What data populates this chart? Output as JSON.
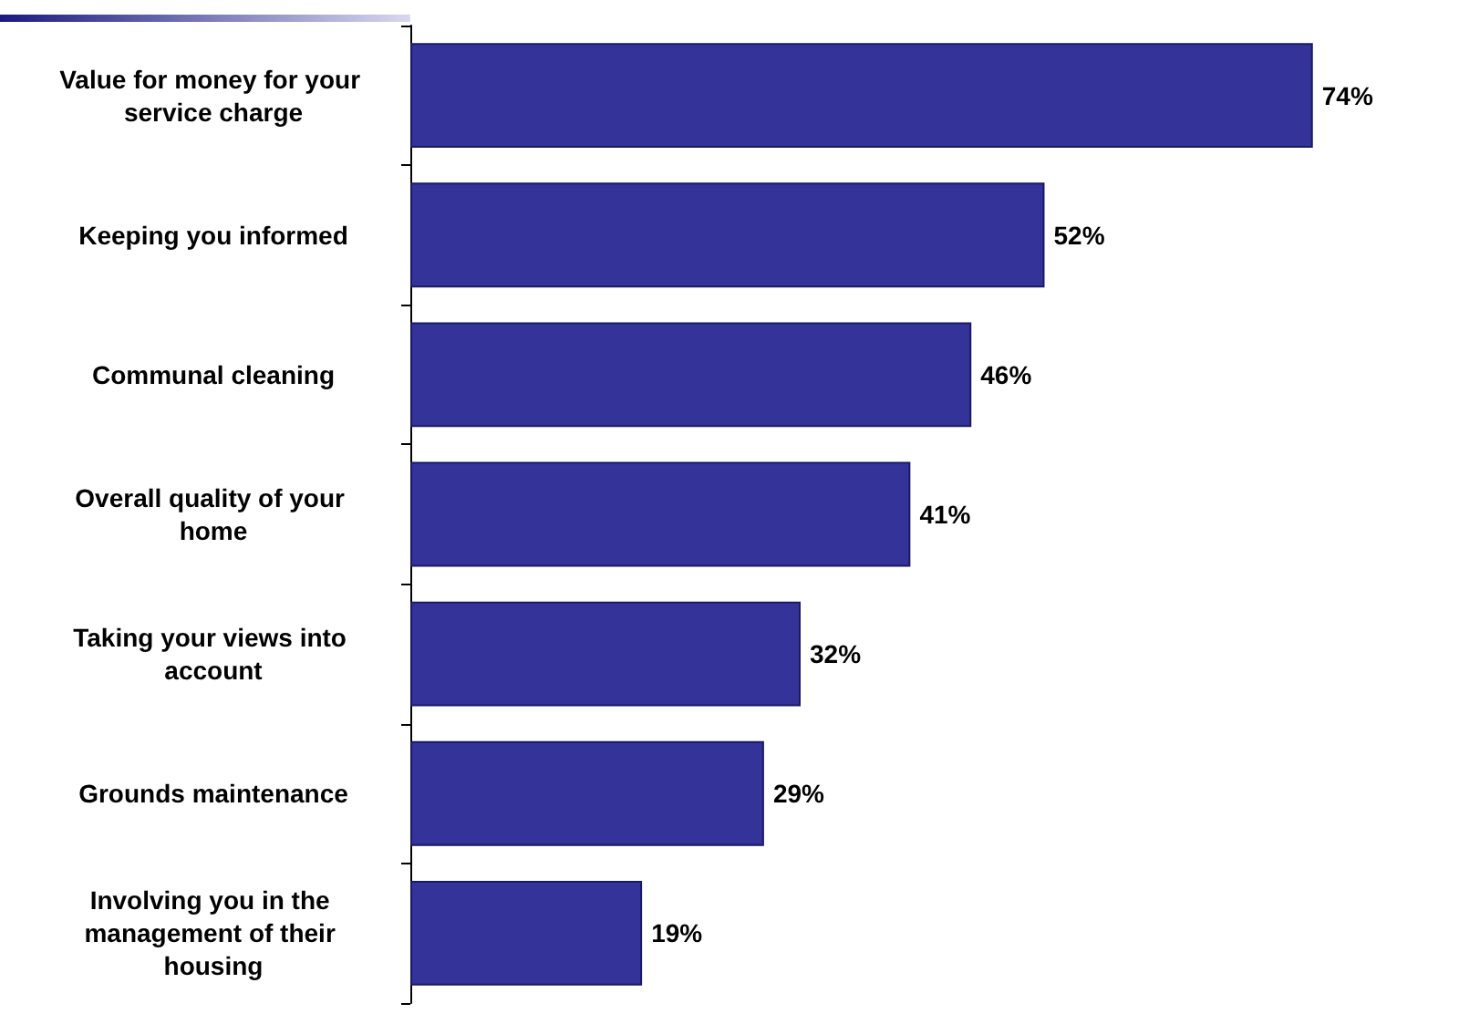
{
  "chart_data": {
    "type": "bar",
    "orientation": "horizontal",
    "tick_labels": "y",
    "categories": [
      "Value for money for your service charge",
      "Keeping you informed",
      "Communal cleaning",
      "Overall quality of your home",
      "Taking your views into account",
      "Grounds maintenance",
      "Involving you in the management of their housing"
    ],
    "values": [
      74,
      52,
      46,
      41,
      32,
      29,
      19
    ],
    "value_labels": [
      "74%",
      "52%",
      "46%",
      "41%",
      "32%",
      "29%",
      "19%"
    ],
    "color": "#333399"
  }
}
